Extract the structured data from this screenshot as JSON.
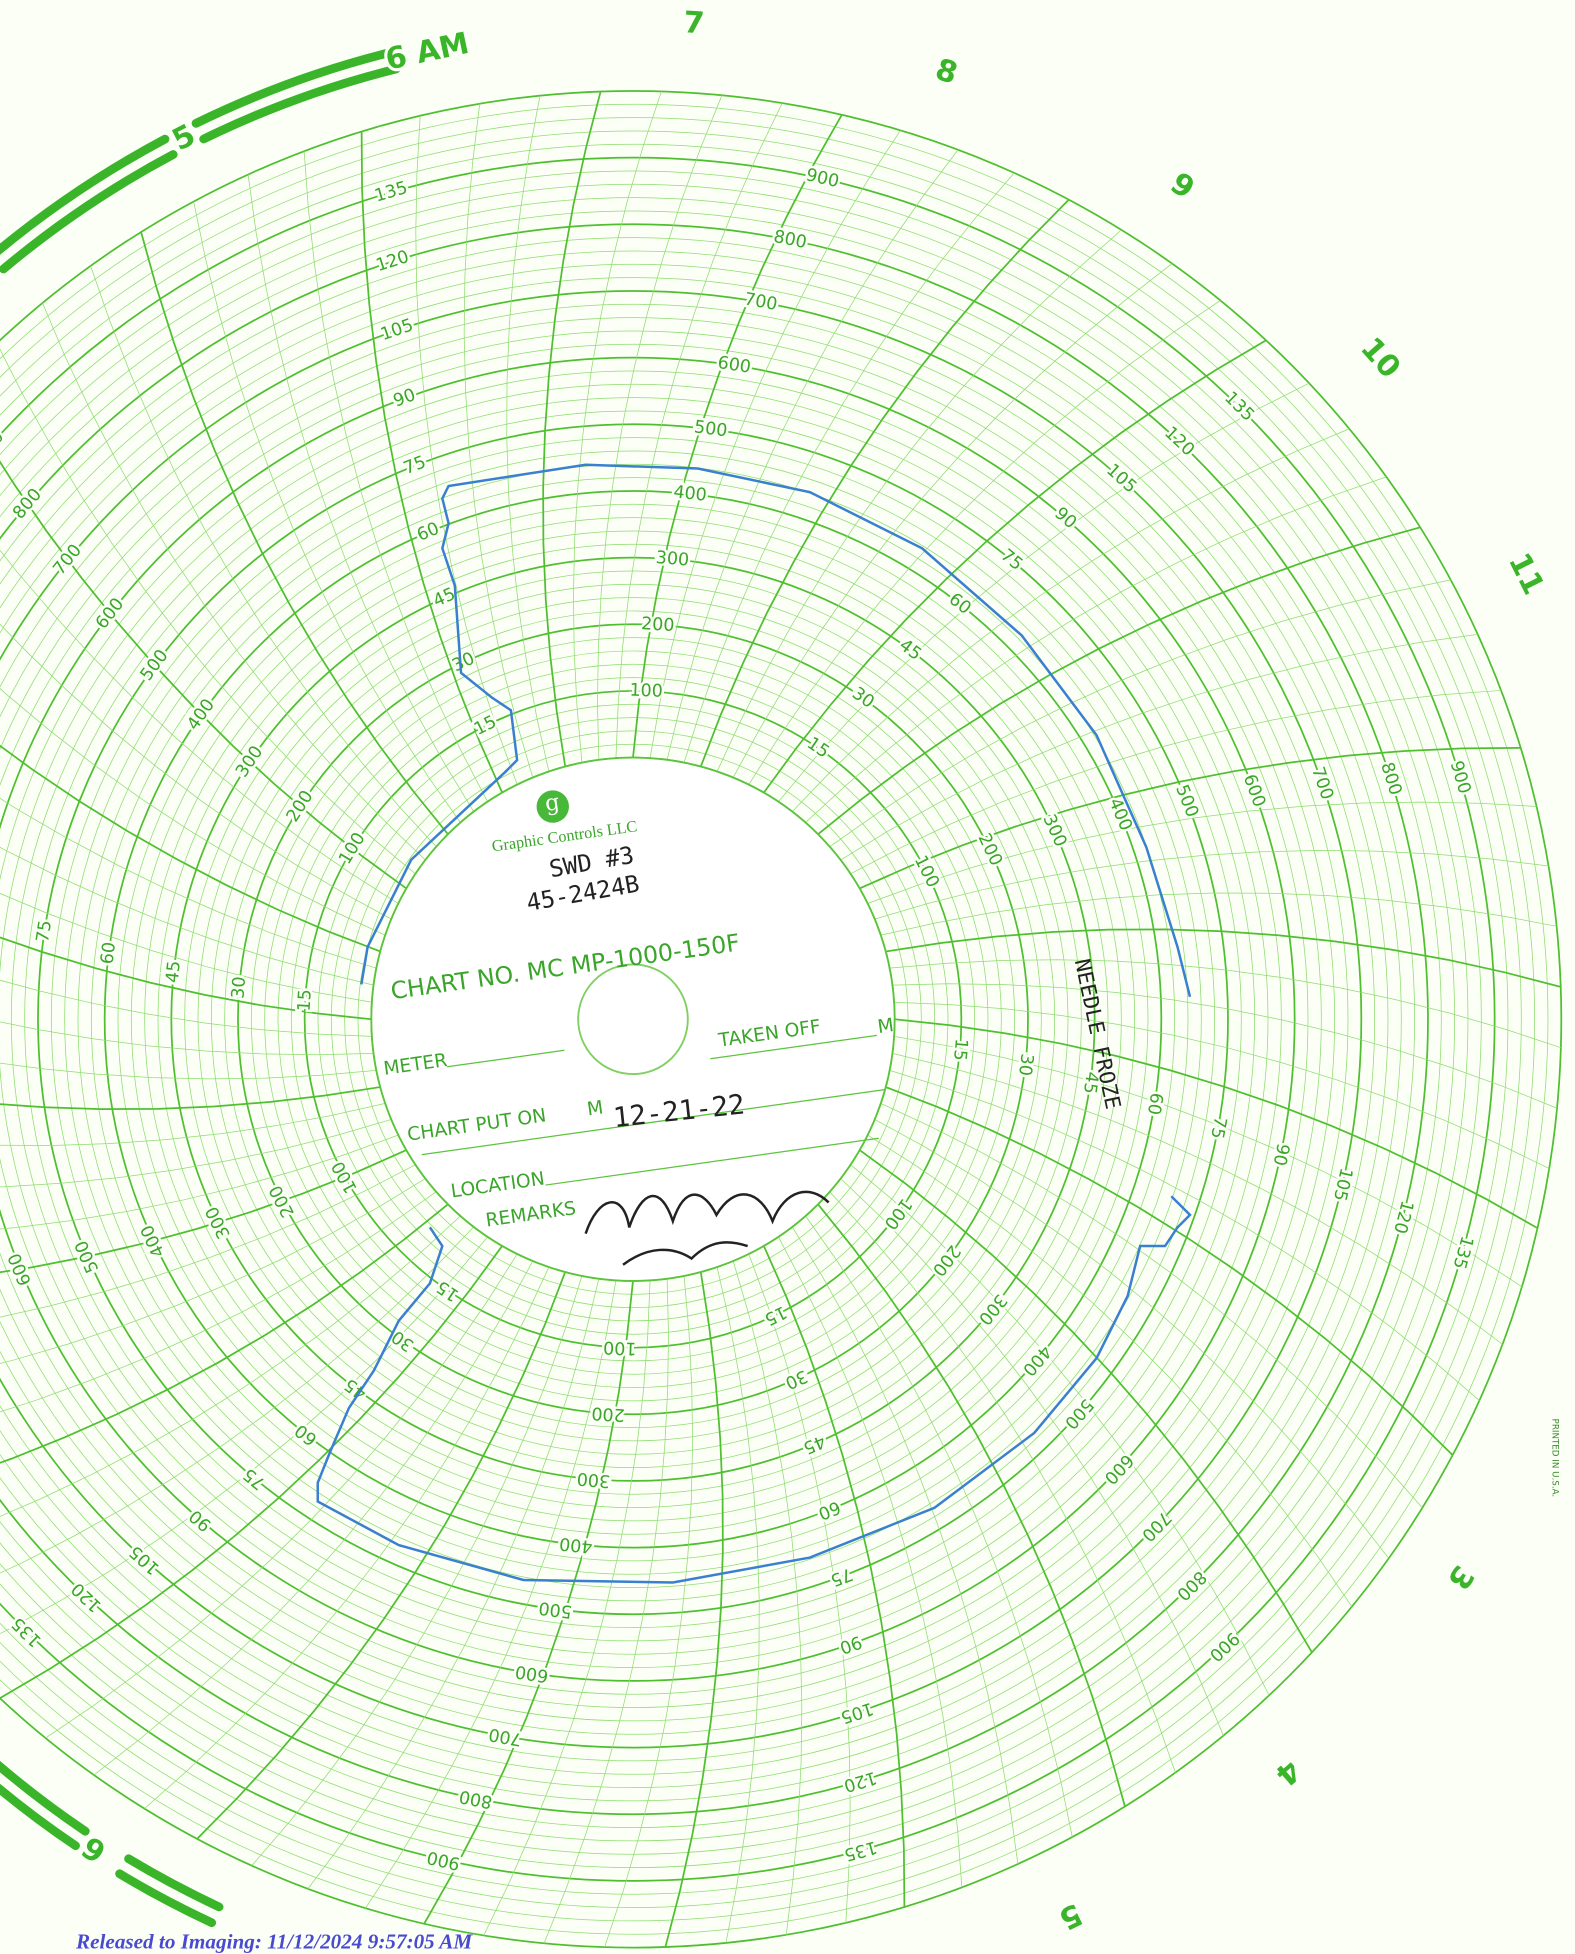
{
  "hour_labels": [
    "5",
    "6 AM",
    "7",
    "8",
    "9",
    "10",
    "11",
    "3",
    "4",
    "5",
    "6"
  ],
  "pressure_scale": {
    "lim": [
      0,
      1000
    ],
    "values": [
      100,
      200,
      300,
      400,
      500,
      600,
      700,
      800,
      900
    ]
  },
  "temperature_scale": {
    "lim": [
      0,
      150
    ],
    "values": [
      15,
      30,
      45,
      60,
      75,
      90,
      105,
      120,
      135
    ]
  },
  "center_label": {
    "logo": "g",
    "brand": "Graphic Controls LLC",
    "chart_no": "CHART NO. MC MP-1000-150F",
    "meter": "METER",
    "taken_off": "TAKEN OFF",
    "taken_off_m": "M",
    "chart_put_on": "CHART PUT ON",
    "chart_put_on_m": "M",
    "location": "LOCATION",
    "remarks": "REMARKS"
  },
  "handwriting": {
    "well": "SWD #3",
    "id": "45-2424B",
    "date": "12-21-22",
    "note": "NEEDLE FROZE"
  },
  "printed_in": "PRINTED IN U.S.A.",
  "footer": "Released to Imaging: 11/12/2024 9:57:05 AM"
}
